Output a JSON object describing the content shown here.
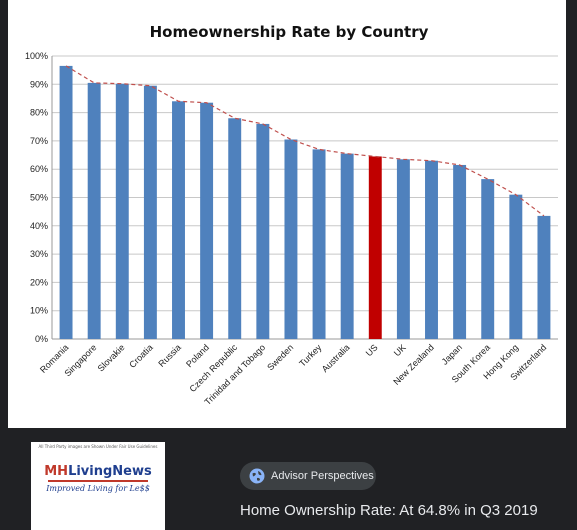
{
  "chart_data": {
    "type": "bar",
    "title": "Homeownership Rate by Country",
    "categories": [
      "Romania",
      "Singapore",
      "Slovakie",
      "Croatia",
      "Russia",
      "Poland",
      "Czech Republic",
      "Trinidad and Tobago",
      "Sweden",
      "Turkey",
      "Australia",
      "US",
      "UK",
      "New Zealand",
      "Japan",
      "South Korea",
      "Hong Kong",
      "Switzerland"
    ],
    "series": [
      {
        "values": [
          96.5,
          90.5,
          90.2,
          89.5,
          84.0,
          83.5,
          78.0,
          76.0,
          70.5,
          67.0,
          65.5,
          64.5,
          63.5,
          63.0,
          61.5,
          56.5,
          51.0,
          43.5
        ]
      }
    ],
    "ylim": [
      0,
      100
    ],
    "yticks": [
      "0%",
      "10%",
      "20%",
      "30%",
      "40%",
      "50%",
      "60%",
      "70%",
      "80%",
      "90%",
      "100%"
    ],
    "highlight_category": "US",
    "trendline": "dashed",
    "grid": true,
    "colors": {
      "bar": "#4f81bd",
      "highlight": "#c00000",
      "trendline": "#c0504d",
      "grid": "#c8c8c8"
    }
  },
  "thumbnail": {
    "note": "All Third Party images are Shown Under Fair Use Guidelines",
    "logo_part1": "MH",
    "logo_part2": "LivingNews",
    "tagline": "Improved Living for Le$$"
  },
  "source": {
    "icon": "globe-icon",
    "label": "Advisor Perspectives"
  },
  "headline": "Home Ownership Rate: At 64.8% in Q3 2019"
}
